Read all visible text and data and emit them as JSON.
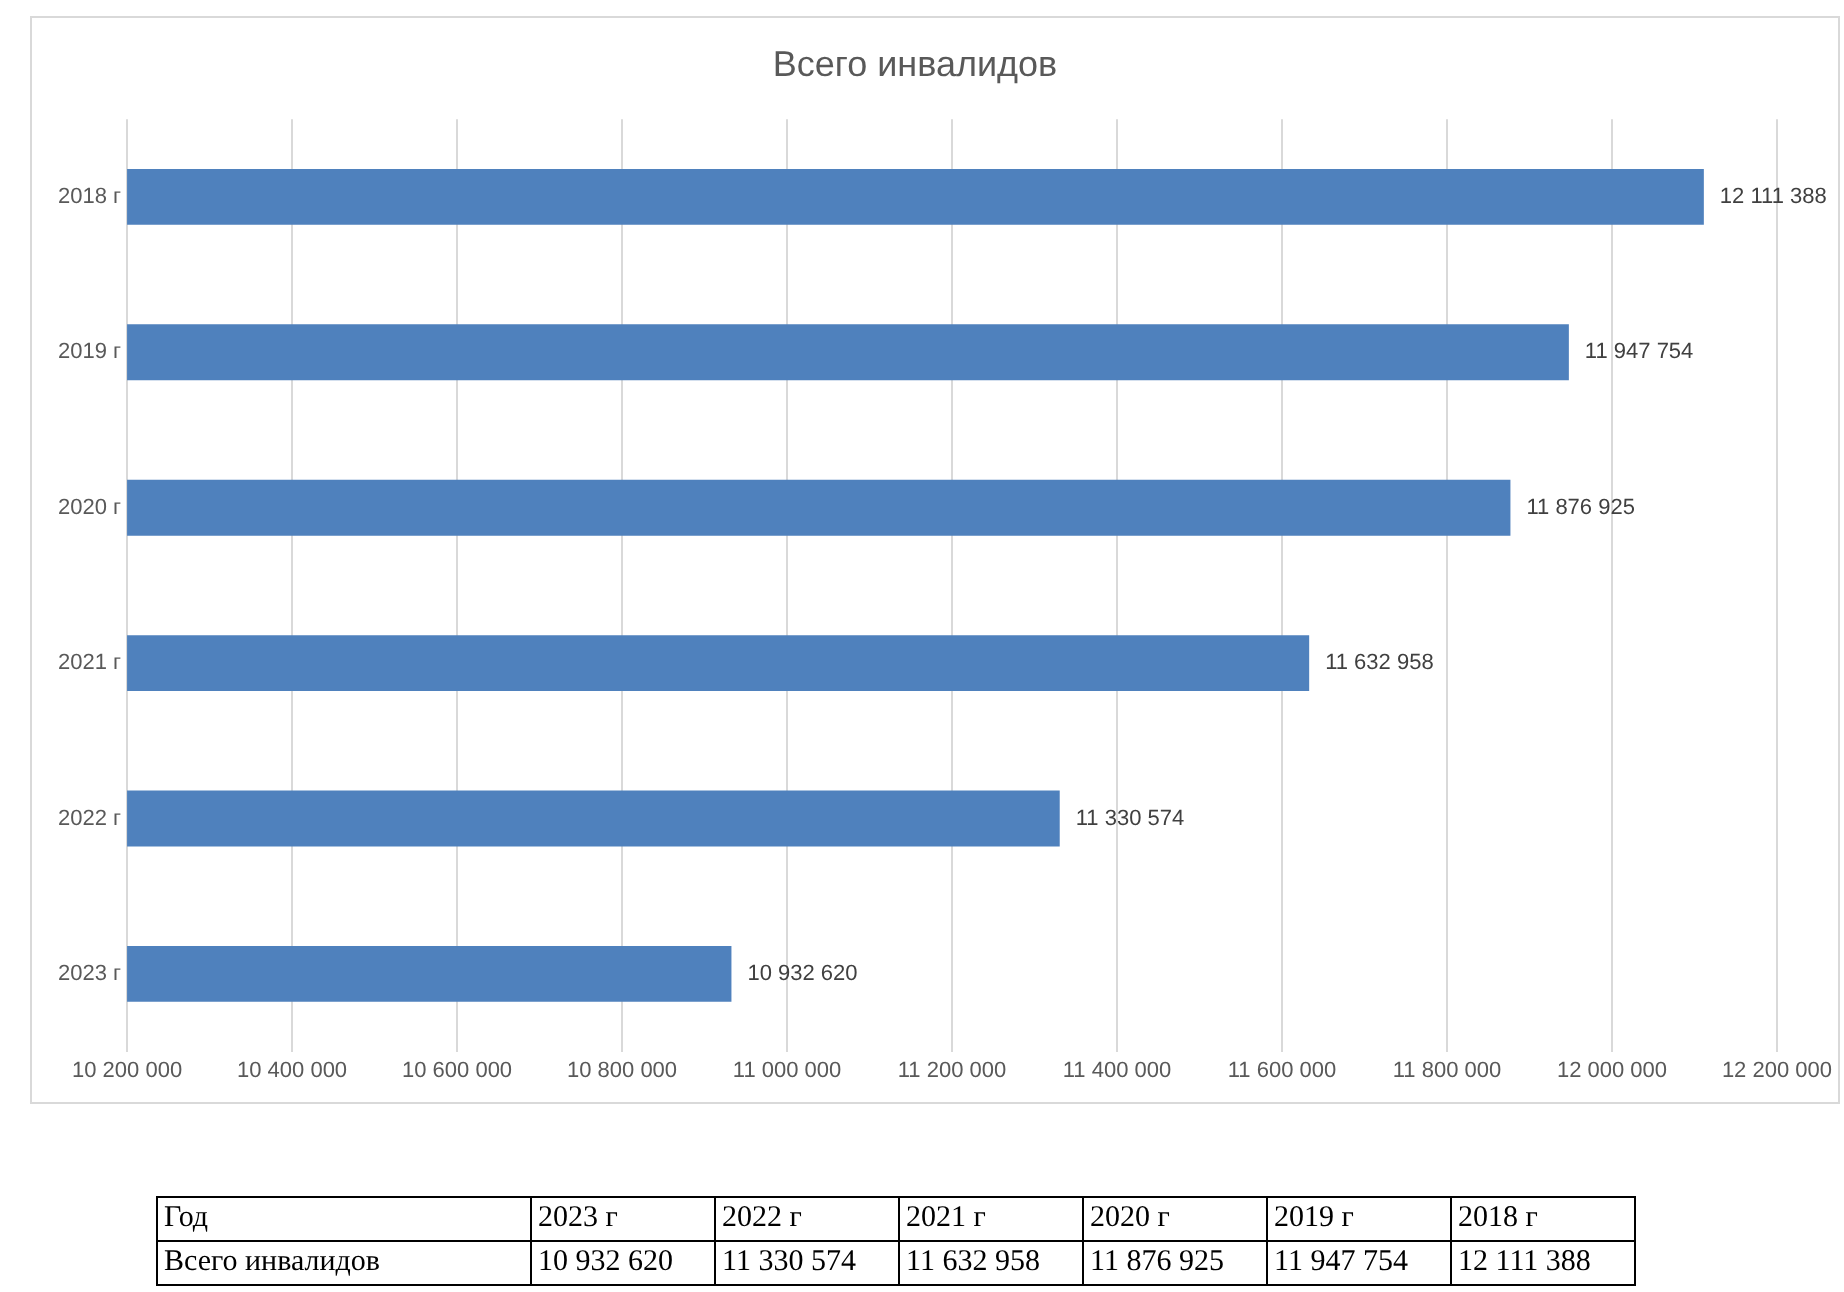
{
  "chart_data": {
    "type": "bar",
    "orientation": "horizontal",
    "title": "Всего инвалидов",
    "categories": [
      "2018 г",
      "2019 г",
      "2020 г",
      "2021 г",
      "2022 г",
      "2023 г"
    ],
    "values": [
      12111388,
      11947754,
      11876925,
      11632958,
      11330574,
      10932620
    ],
    "color": "#4f81bd",
    "xlim": [
      10200000,
      12200000
    ],
    "xticks": [
      {
        "value": 10200000,
        "label": "10 200 000"
      },
      {
        "value": 10400000,
        "label": "10 400 000"
      },
      {
        "value": 10600000,
        "label": "10 600 000"
      },
      {
        "value": 10800000,
        "label": "10 800 000"
      },
      {
        "value": 11000000,
        "label": "11 000 000"
      },
      {
        "value": 11200000,
        "label": "11 200 000"
      },
      {
        "value": 11400000,
        "label": "11 400 000"
      },
      {
        "value": 11600000,
        "label": "11 600 000"
      },
      {
        "value": 11800000,
        "label": "11 800 000"
      },
      {
        "value": 12000000,
        "label": "12 000 000"
      },
      {
        "value": 12200000,
        "label": "12 200 000"
      }
    ],
    "grid": "x",
    "value_labels": [
      "12 111 388",
      "11 947 754",
      "11 876 925",
      "11 632 958",
      "11 330 574",
      "10 932 620"
    ],
    "annotations": [
      "Год",
      "Всего инвалидов"
    ]
  }
}
